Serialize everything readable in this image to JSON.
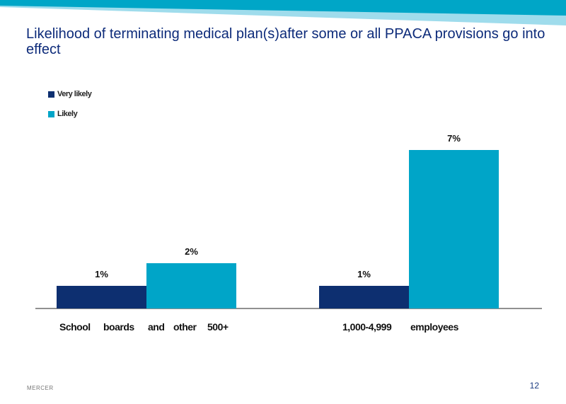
{
  "slide": {
    "title": "Likelihood of terminating medical plan(s)after some or all PPACA provisions go into effect",
    "footer_brand": "MERCER",
    "page_number": "12"
  },
  "colors": {
    "title": "#0d2b7a",
    "banner_dark": "#00a6c7",
    "banner_light": "#9fdcec",
    "very_likely": "#0d2f70",
    "likely": "#00a5c8",
    "axis": "#222222"
  },
  "chart_data": {
    "type": "bar",
    "title": "",
    "xlabel": "",
    "ylabel": "",
    "ylim": [
      0,
      8
    ],
    "grid": false,
    "legend_position": "top-left",
    "categories": [
      [
        "School",
        "boards",
        "and",
        "other",
        "500+"
      ],
      [
        "1,000-4,999",
        "employees"
      ]
    ],
    "series": [
      {
        "name": "Very likely",
        "color": "#0d2f70",
        "values": [
          1,
          1
        ],
        "labels": [
          "1%",
          "1%"
        ]
      },
      {
        "name": "Likely",
        "color": "#00a5c8",
        "values": [
          2,
          7
        ],
        "labels": [
          "2%",
          "7%"
        ]
      }
    ]
  }
}
